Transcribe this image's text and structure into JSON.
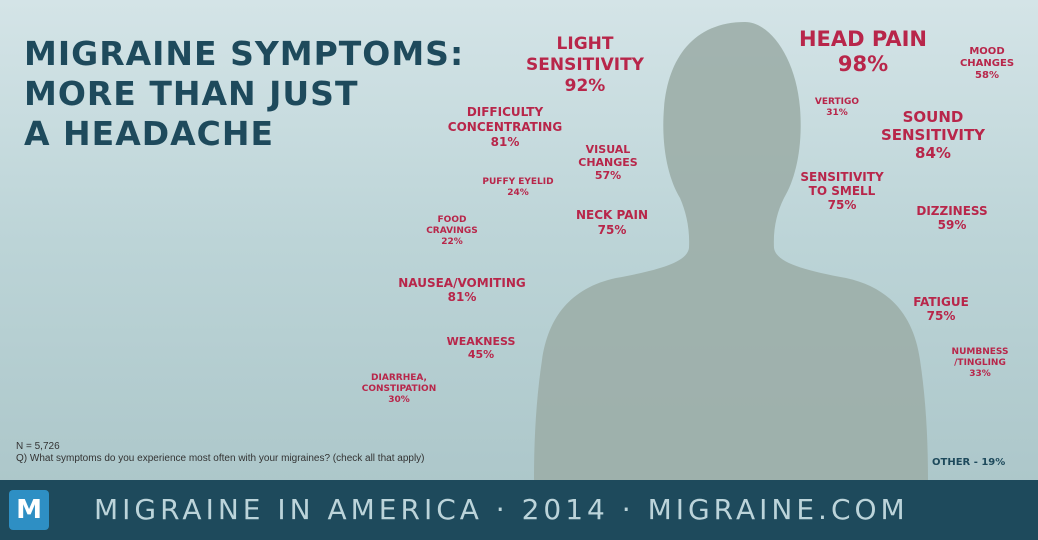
{
  "title": {
    "line1": "MIGRAINE SYMPTOMS:",
    "line2": "MORE THAN JUST",
    "line3": "A HEADACHE"
  },
  "colors": {
    "title": "#1e4a5c",
    "symptom": "#b8264a",
    "silhouette": "#9caea9",
    "footer_bg": "#1e4a5c",
    "logo_bg": "#2e8fc4"
  },
  "symptoms": {
    "light_sensitivity": {
      "lines": [
        "LIGHT",
        "SENSITIVITY",
        "92%"
      ]
    },
    "head_pain": {
      "lines": [
        "HEAD PAIN",
        "98%"
      ]
    },
    "mood_changes": {
      "lines": [
        "MOOD",
        "CHANGES",
        "58%"
      ]
    },
    "difficulty_concentrating": {
      "lines": [
        "DIFFICULTY",
        "CONCENTRATING",
        "81%"
      ]
    },
    "vertigo": {
      "lines": [
        "VERTIGO",
        "31%"
      ]
    },
    "sound_sensitivity": {
      "lines": [
        "SOUND",
        "SENSITIVITY",
        "84%"
      ]
    },
    "visual_changes": {
      "lines": [
        "VISUAL",
        "CHANGES",
        "57%"
      ]
    },
    "puffy_eyelid": {
      "lines": [
        "PUFFY EYELID",
        "24%"
      ]
    },
    "sensitivity_to_smell": {
      "lines": [
        "SENSITIVITY",
        "TO SMELL",
        "75%"
      ]
    },
    "neck_pain": {
      "lines": [
        "NECK PAIN",
        "75%"
      ]
    },
    "dizziness": {
      "lines": [
        "DIZZINESS",
        "59%"
      ]
    },
    "food_cravings": {
      "lines": [
        "FOOD",
        "CRAVINGS",
        "22%"
      ]
    },
    "nausea_vomiting": {
      "lines": [
        "NAUSEA/VOMITING",
        "81%"
      ]
    },
    "fatigue": {
      "lines": [
        "FATIGUE",
        "75%"
      ]
    },
    "weakness": {
      "lines": [
        "WEAKNESS",
        "45%"
      ]
    },
    "numbness_tingling": {
      "lines": [
        "NUMBNESS",
        "/TINGLING",
        "33%"
      ]
    },
    "diarrhea_constipation": {
      "lines": [
        "DIARRHEA,",
        "CONSTIPATION",
        "30%"
      ]
    }
  },
  "sample_size": "N = 5,726",
  "question": "Q) What symptoms do you experience most often with your migraines? (check all that apply)",
  "other": "OTHER - 19%",
  "footer": {
    "logo_letter": "M",
    "text": "MIGRAINE IN AMERICA · 2014 · MIGRAINE.COM"
  }
}
